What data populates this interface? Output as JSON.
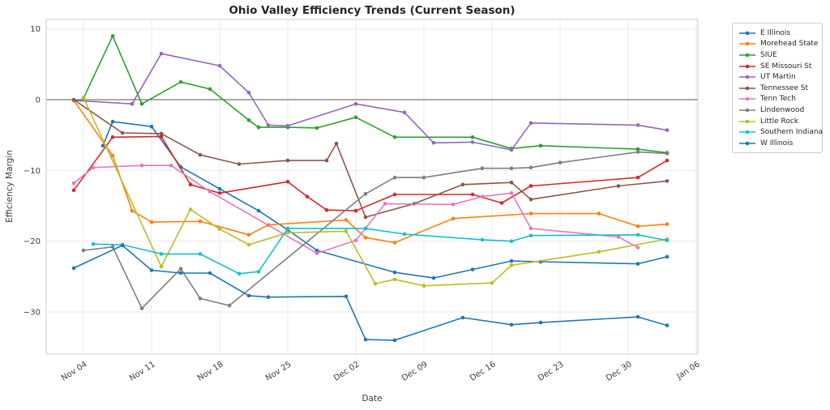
{
  "figure": {
    "title": "Ohio Valley Efficiency Trends (Current Season)",
    "xlabel": "Date",
    "ylabel": "Efficiency Margin"
  },
  "chart_data": {
    "type": "line",
    "title": "Ohio Valley Efficiency Trends (Current Season)",
    "xlabel": "Date",
    "ylabel": "Efficiency Margin",
    "grid": true,
    "zero_line": true,
    "legend_position": "outside-right",
    "x_tick_labels": [
      "Nov 04",
      "Nov 11",
      "Nov 18",
      "Nov 25",
      "Dec 02",
      "Dec 09",
      "Dec 16",
      "Dec 23",
      "Dec 30",
      "Jan 06"
    ],
    "y_ticks": [
      10,
      0,
      -10,
      -20,
      -30
    ],
    "ylim": [
      -36.0,
      11.3
    ],
    "series": [
      {
        "name": "E Illinois",
        "color": "#1f77b4",
        "points": [
          [
            "Nov 06",
            -6.5
          ],
          [
            "Nov 07",
            -3.1
          ],
          [
            "Nov 11",
            -3.8
          ],
          [
            "Nov 14",
            -9.5
          ],
          [
            "Nov 18",
            -12.6
          ],
          [
            "Nov 22",
            -15.7
          ],
          [
            "Nov 25",
            -18.4
          ],
          [
            "Nov 28",
            -21.3
          ],
          [
            "Dec 06",
            -24.4
          ],
          [
            "Dec 10",
            -25.2
          ],
          [
            "Dec 14",
            -24.0
          ],
          [
            "Dec 18",
            -22.8
          ],
          [
            "Dec 21",
            -22.9
          ],
          [
            "Dec 31",
            -23.2
          ],
          [
            "Jan 03",
            -22.2
          ]
        ]
      },
      {
        "name": "Morehead State",
        "color": "#ff7f0e",
        "points": [
          [
            "Nov 03",
            -0.1
          ],
          [
            "Nov 07",
            -7.9
          ],
          [
            "Nov 09",
            -15.7
          ],
          [
            "Nov 11",
            -17.3
          ],
          [
            "Nov 16",
            -17.2
          ],
          [
            "Nov 21",
            -19.1
          ],
          [
            "Nov 23",
            -17.7
          ],
          [
            "Dec 01",
            -17.0
          ],
          [
            "Dec 03",
            -19.5
          ],
          [
            "Dec 06",
            -20.2
          ],
          [
            "Dec 12",
            -16.8
          ],
          [
            "Dec 20",
            -16.1
          ],
          [
            "Dec 27",
            -16.1
          ],
          [
            "Dec 31",
            -17.9
          ],
          [
            "Jan 03",
            -17.6
          ]
        ]
      },
      {
        "name": "SIUE",
        "color": "#2ca02c",
        "points": [
          [
            "Nov 04",
            0.2
          ],
          [
            "Nov 07",
            9.0
          ],
          [
            "Nov 10",
            -0.6
          ],
          [
            "Nov 14",
            2.5
          ],
          [
            "Nov 17",
            1.5
          ],
          [
            "Nov 21",
            -2.9
          ],
          [
            "Nov 22",
            -3.9
          ],
          [
            "Nov 25",
            -3.9
          ],
          [
            "Nov 28",
            -4.0
          ],
          [
            "Dec 02",
            -2.5
          ],
          [
            "Dec 06",
            -5.3
          ],
          [
            "Dec 14",
            -5.3
          ],
          [
            "Dec 18",
            -6.9
          ],
          [
            "Dec 21",
            -6.5
          ],
          [
            "Dec 31",
            -7.0
          ],
          [
            "Jan 03",
            -7.5
          ]
        ]
      },
      {
        "name": "SE Missouri St",
        "color": "#d62728",
        "points": [
          [
            "Nov 03",
            -12.8
          ],
          [
            "Nov 07",
            -5.3
          ],
          [
            "Nov 12",
            -5.2
          ],
          [
            "Nov 15",
            -12.0
          ],
          [
            "Nov 18",
            -13.2
          ],
          [
            "Nov 25",
            -11.6
          ],
          [
            "Nov 27",
            -13.7
          ],
          [
            "Nov 29",
            -15.6
          ],
          [
            "Dec 02",
            -15.7
          ],
          [
            "Dec 06",
            -13.4
          ],
          [
            "Dec 14",
            -13.4
          ],
          [
            "Dec 17",
            -14.6
          ],
          [
            "Dec 20",
            -12.2
          ],
          [
            "Dec 31",
            -11.0
          ],
          [
            "Jan 03",
            -8.6
          ]
        ]
      },
      {
        "name": "UT Martin",
        "color": "#9467bd",
        "points": [
          [
            "Nov 03",
            -0.1
          ],
          [
            "Nov 09",
            -0.6
          ],
          [
            "Nov 12",
            6.5
          ],
          [
            "Nov 18",
            4.8
          ],
          [
            "Nov 21",
            1.0
          ],
          [
            "Nov 23",
            -3.6
          ],
          [
            "Nov 25",
            -3.7
          ],
          [
            "Dec 02",
            -0.6
          ],
          [
            "Dec 07",
            -1.8
          ],
          [
            "Dec 10",
            -6.1
          ],
          [
            "Dec 14",
            -6.0
          ],
          [
            "Dec 18",
            -7.1
          ],
          [
            "Dec 20",
            -3.3
          ],
          [
            "Dec 31",
            -3.6
          ],
          [
            "Jan 03",
            -4.3
          ]
        ]
      },
      {
        "name": "Tennessee St",
        "color": "#8c564b",
        "points": [
          [
            "Nov 03",
            0.0
          ],
          [
            "Nov 08",
            -4.7
          ],
          [
            "Nov 12",
            -4.8
          ],
          [
            "Nov 16",
            -7.8
          ],
          [
            "Nov 20",
            -9.1
          ],
          [
            "Nov 25",
            -8.6
          ],
          [
            "Nov 29",
            -8.6
          ],
          [
            "Nov 30",
            -6.2
          ],
          [
            "Dec 03",
            -16.6
          ],
          [
            "Dec 08",
            -14.7
          ],
          [
            "Dec 13",
            -12.0
          ],
          [
            "Dec 18",
            -11.7
          ],
          [
            "Dec 20",
            -14.1
          ],
          [
            "Dec 29",
            -12.2
          ],
          [
            "Jan 03",
            -11.5
          ]
        ]
      },
      {
        "name": "Tenn Tech",
        "color": "#e377c2",
        "points": [
          [
            "Nov 03",
            -11.8
          ],
          [
            "Nov 05",
            -9.6
          ],
          [
            "Nov 10",
            -9.3
          ],
          [
            "Nov 13",
            -9.3
          ],
          [
            "Nov 17",
            -13.0
          ],
          [
            "Nov 28",
            -21.7
          ],
          [
            "Dec 02",
            -19.9
          ],
          [
            "Dec 05",
            -14.7
          ],
          [
            "Dec 12",
            -14.8
          ],
          [
            "Dec 15",
            -13.7
          ],
          [
            "Dec 18",
            -13.2
          ],
          [
            "Dec 20",
            -18.2
          ],
          [
            "Dec 29",
            -19.4
          ],
          [
            "Dec 31",
            -20.9
          ]
        ]
      },
      {
        "name": "Lindenwood",
        "color": "#7f7f7f",
        "points": [
          [
            "Nov 04",
            -21.3
          ],
          [
            "Nov 07",
            -20.8
          ],
          [
            "Nov 10",
            -29.5
          ],
          [
            "Nov 14",
            -23.9
          ],
          [
            "Nov 16",
            -28.1
          ],
          [
            "Nov 19",
            -29.1
          ],
          [
            "Dec 03",
            -13.3
          ],
          [
            "Dec 06",
            -11.0
          ],
          [
            "Dec 09",
            -11.0
          ],
          [
            "Dec 15",
            -9.7
          ],
          [
            "Dec 18",
            -9.7
          ],
          [
            "Dec 20",
            -9.6
          ],
          [
            "Dec 23",
            -8.9
          ],
          [
            "Dec 31",
            -7.4
          ],
          [
            "Jan 03",
            -7.6
          ]
        ]
      },
      {
        "name": "Little Rock",
        "color": "#bcbd22",
        "points": [
          [
            "Nov 04",
            0.3
          ],
          [
            "Nov 12",
            -23.6
          ],
          [
            "Nov 15",
            -15.5
          ],
          [
            "Nov 18",
            -18.3
          ],
          [
            "Nov 21",
            -20.5
          ],
          [
            "Nov 25",
            -18.8
          ],
          [
            "Dec 01",
            -18.6
          ],
          [
            "Dec 04",
            -26.0
          ],
          [
            "Dec 06",
            -25.4
          ],
          [
            "Dec 09",
            -26.3
          ],
          [
            "Dec 16",
            -25.9
          ],
          [
            "Dec 18",
            -23.4
          ],
          [
            "Dec 27",
            -21.5
          ],
          [
            "Jan 03",
            -19.7
          ]
        ]
      },
      {
        "name": "Southern Indiana",
        "color": "#17becf",
        "points": [
          [
            "Nov 05",
            -20.4
          ],
          [
            "Nov 08",
            -20.5
          ],
          [
            "Nov 12",
            -21.8
          ],
          [
            "Nov 16",
            -21.8
          ],
          [
            "Nov 20",
            -24.6
          ],
          [
            "Nov 22",
            -24.3
          ],
          [
            "Nov 25",
            -18.2
          ],
          [
            "Dec 03",
            -18.2
          ],
          [
            "Dec 07",
            -19.0
          ],
          [
            "Dec 15",
            -19.8
          ],
          [
            "Dec 18",
            -20.0
          ],
          [
            "Dec 20",
            -19.2
          ],
          [
            "Dec 31",
            -19.1
          ],
          [
            "Jan 03",
            -19.9
          ]
        ]
      },
      {
        "name": "W Illinois",
        "color": "#1f77b4",
        "points": [
          [
            "Nov 03",
            -23.8
          ],
          [
            "Nov 08",
            -20.6
          ],
          [
            "Nov 11",
            -24.1
          ],
          [
            "Nov 14",
            -24.5
          ],
          [
            "Nov 17",
            -24.5
          ],
          [
            "Nov 21",
            -27.7
          ],
          [
            "Nov 23",
            -27.9
          ],
          [
            "Dec 01",
            -27.8
          ],
          [
            "Dec 03",
            -33.9
          ],
          [
            "Dec 06",
            -34.0
          ],
          [
            "Dec 13",
            -30.8
          ],
          [
            "Dec 18",
            -31.8
          ],
          [
            "Dec 21",
            -31.5
          ],
          [
            "Dec 31",
            -30.7
          ],
          [
            "Jan 03",
            -31.9
          ]
        ]
      }
    ]
  }
}
